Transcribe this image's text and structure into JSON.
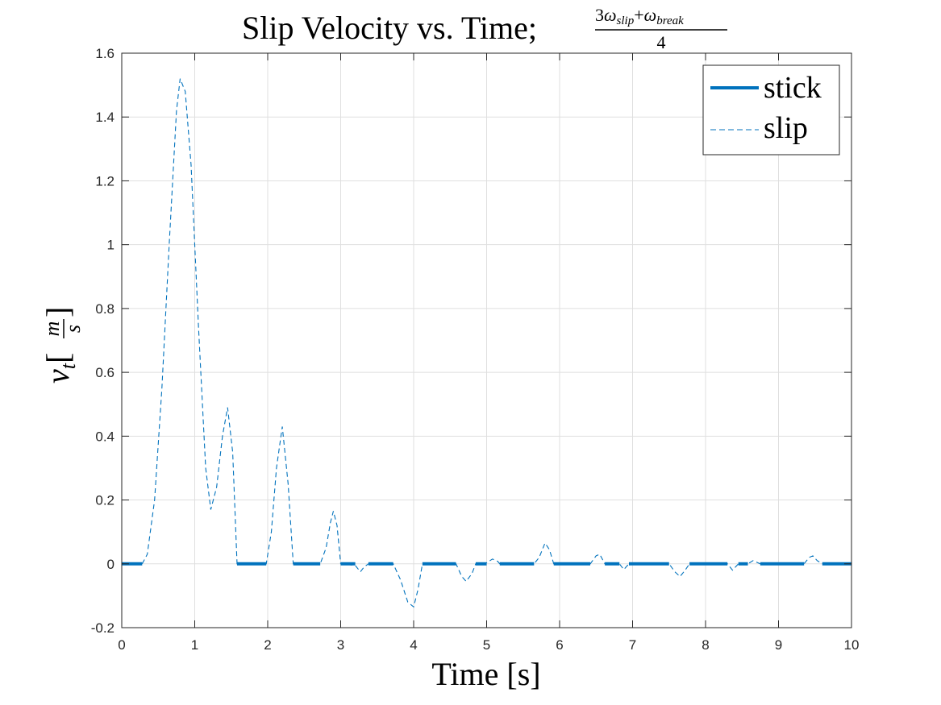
{
  "chart_data": {
    "type": "line",
    "title": "Slip Velocity vs. Time; ",
    "title_fraction": {
      "numerator_coef": "3",
      "numerator_var1": "ω",
      "numerator_sub1": "slip",
      "numerator_plus": "+",
      "numerator_var2": "ω",
      "numerator_sub2": "break",
      "denominator": "4"
    },
    "xlabel": "Time [s]",
    "ylabel": {
      "var": "v",
      "sub": "t",
      "unit_num": "m",
      "unit_den": "s",
      "open_bracket": "[",
      "close_bracket": "]"
    },
    "xlim": [
      0,
      10
    ],
    "ylim": [
      -0.2,
      1.6
    ],
    "xticks": [
      "0",
      "1",
      "2",
      "3",
      "4",
      "5",
      "6",
      "7",
      "8",
      "9",
      "10"
    ],
    "yticks": [
      "-0.2",
      "0",
      "0.2",
      "0.4",
      "0.6",
      "0.8",
      "1",
      "1.2",
      "1.4",
      "1.6"
    ],
    "grid": true,
    "legend_position": "top-right",
    "series": [
      {
        "name": "stick",
        "style": "solid",
        "color": "#0072BD",
        "segments": [
          [
            [
              0,
              0
            ],
            [
              0.28,
              0
            ]
          ],
          [
            [
              1.58,
              0
            ],
            [
              1.98,
              0
            ]
          ],
          [
            [
              2.35,
              0
            ],
            [
              2.72,
              0
            ]
          ],
          [
            [
              3.0,
              0
            ],
            [
              3.2,
              0
            ]
          ],
          [
            [
              3.38,
              0
            ],
            [
              3.72,
              0
            ]
          ],
          [
            [
              4.12,
              0
            ],
            [
              4.58,
              0
            ]
          ],
          [
            [
              4.85,
              0
            ],
            [
              5.0,
              0
            ]
          ],
          [
            [
              5.18,
              0
            ],
            [
              5.65,
              0
            ]
          ],
          [
            [
              5.92,
              0
            ],
            [
              6.42,
              0
            ]
          ],
          [
            [
              6.62,
              0
            ],
            [
              6.82,
              0
            ]
          ],
          [
            [
              6.95,
              0
            ],
            [
              7.5,
              0
            ]
          ],
          [
            [
              7.78,
              0
            ],
            [
              8.3,
              0
            ]
          ],
          [
            [
              8.45,
              0
            ],
            [
              8.58,
              0
            ]
          ],
          [
            [
              8.75,
              0
            ],
            [
              9.35,
              0
            ]
          ],
          [
            [
              9.6,
              0
            ],
            [
              10,
              0
            ]
          ]
        ]
      },
      {
        "name": "slip",
        "style": "dashed",
        "color": "#0072BD",
        "points": [
          [
            0.28,
            0
          ],
          [
            0.35,
            0.03
          ],
          [
            0.45,
            0.2
          ],
          [
            0.55,
            0.55
          ],
          [
            0.65,
            1.0
          ],
          [
            0.75,
            1.42
          ],
          [
            0.8,
            1.52
          ],
          [
            0.87,
            1.48
          ],
          [
            0.95,
            1.25
          ],
          [
            1.05,
            0.75
          ],
          [
            1.15,
            0.3
          ],
          [
            1.22,
            0.17
          ],
          [
            1.3,
            0.24
          ],
          [
            1.38,
            0.4
          ],
          [
            1.45,
            0.49
          ],
          [
            1.52,
            0.35
          ],
          [
            1.58,
            0
          ],
          [
            1.98,
            0
          ],
          [
            2.05,
            0.1
          ],
          [
            2.12,
            0.3
          ],
          [
            2.2,
            0.43
          ],
          [
            2.28,
            0.25
          ],
          [
            2.35,
            0
          ],
          [
            2.72,
            0
          ],
          [
            2.8,
            0.05
          ],
          [
            2.86,
            0.13
          ],
          [
            2.9,
            0.165
          ],
          [
            2.95,
            0.12
          ],
          [
            3.0,
            0
          ],
          [
            3.2,
            -0.005
          ],
          [
            3.27,
            -0.025
          ],
          [
            3.32,
            -0.01
          ],
          [
            3.38,
            0
          ],
          [
            3.72,
            0
          ],
          [
            3.82,
            -0.05
          ],
          [
            3.92,
            -0.12
          ],
          [
            4.0,
            -0.135
          ],
          [
            4.06,
            -0.08
          ],
          [
            4.12,
            0
          ],
          [
            4.58,
            0
          ],
          [
            4.66,
            -0.04
          ],
          [
            4.72,
            -0.055
          ],
          [
            4.8,
            -0.03
          ],
          [
            4.85,
            0
          ],
          [
            5.0,
            0.003
          ],
          [
            5.08,
            0.015
          ],
          [
            5.15,
            0.008
          ],
          [
            5.18,
            0
          ],
          [
            5.65,
            0
          ],
          [
            5.72,
            0.02
          ],
          [
            5.8,
            0.065
          ],
          [
            5.86,
            0.045
          ],
          [
            5.92,
            0
          ],
          [
            6.42,
            0
          ],
          [
            6.5,
            0.025
          ],
          [
            6.55,
            0.03
          ],
          [
            6.62,
            0
          ],
          [
            6.82,
            0
          ],
          [
            6.88,
            -0.018
          ],
          [
            6.95,
            0
          ],
          [
            7.5,
            0
          ],
          [
            7.58,
            -0.025
          ],
          [
            7.65,
            -0.04
          ],
          [
            7.72,
            -0.02
          ],
          [
            7.78,
            0
          ],
          [
            8.3,
            0
          ],
          [
            8.37,
            -0.02
          ],
          [
            8.45,
            0
          ],
          [
            8.58,
            0
          ],
          [
            8.65,
            0.01
          ],
          [
            8.75,
            0
          ],
          [
            9.35,
            0
          ],
          [
            9.42,
            0.02
          ],
          [
            9.47,
            0.025
          ],
          [
            9.53,
            0.01
          ],
          [
            9.6,
            0
          ]
        ]
      }
    ]
  }
}
